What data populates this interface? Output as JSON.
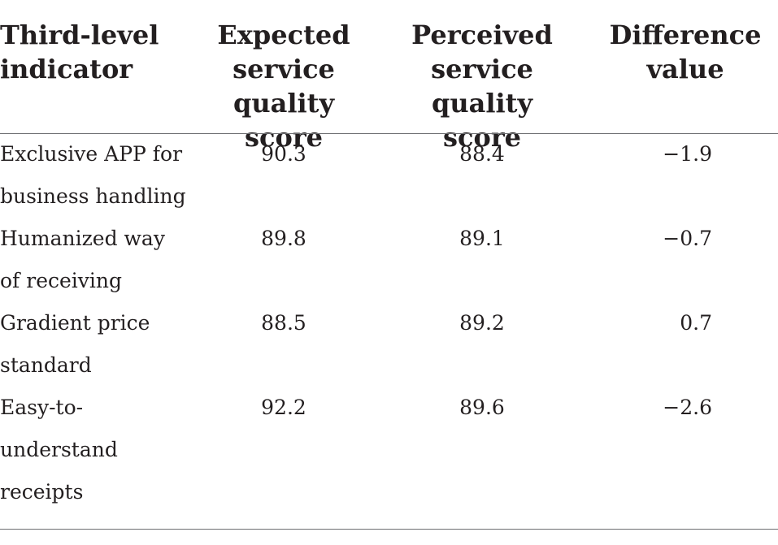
{
  "table": {
    "headers": [
      "Third-level\nindicator",
      "Expected\nservice\nquality score",
      "Perceived\nservice\nquality score",
      "Difference\nvalue"
    ],
    "rows": [
      {
        "indicator": "Exclusive APP for\nbusiness handling",
        "expected": "90.3",
        "perceived": "88.4",
        "difference": "−1.9"
      },
      {
        "indicator": "Humanized way\nof receiving",
        "expected": "89.8",
        "perceived": "89.1",
        "difference": "−0.7"
      },
      {
        "indicator": "Gradient price\nstandard",
        "expected": "88.5",
        "perceived": "89.2",
        "difference": "0.7"
      },
      {
        "indicator": "Easy-to-\nunderstand\nreceipts",
        "expected": "92.2",
        "perceived": "89.6",
        "difference": "−2.6"
      }
    ]
  }
}
